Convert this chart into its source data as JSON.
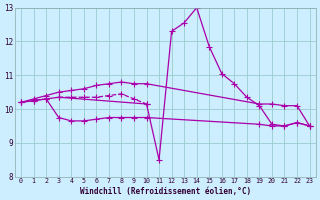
{
  "xlabel": "Windchill (Refroidissement éolien,°C)",
  "xlim": [
    -0.5,
    23.5
  ],
  "ylim": [
    8,
    13
  ],
  "yticks": [
    8,
    9,
    10,
    11,
    12,
    13
  ],
  "xticks": [
    0,
    1,
    2,
    3,
    4,
    5,
    6,
    7,
    8,
    9,
    10,
    11,
    12,
    13,
    14,
    15,
    16,
    17,
    18,
    19,
    20,
    21,
    22,
    23
  ],
  "background_color": "#cceeff",
  "grid_color": "#99cccc",
  "line_color": "#aa00aa",
  "lines": [
    {
      "x": [
        0,
        1,
        2,
        3,
        4,
        5,
        6,
        7,
        8,
        9,
        10,
        19,
        20,
        21,
        22,
        23
      ],
      "y": [
        10.2,
        10.3,
        10.4,
        10.5,
        10.55,
        10.6,
        10.7,
        10.75,
        10.8,
        10.75,
        10.75,
        10.15,
        10.15,
        10.1,
        10.1,
        9.5
      ],
      "ls": "-"
    },
    {
      "x": [
        0,
        1,
        2,
        3,
        4,
        5,
        6,
        7,
        8,
        9,
        10,
        19,
        20,
        21,
        22,
        23
      ],
      "y": [
        10.2,
        10.25,
        10.3,
        9.75,
        9.65,
        9.65,
        9.7,
        9.75,
        9.75,
        9.75,
        9.75,
        9.55,
        9.5,
        9.5,
        9.6,
        9.5
      ],
      "ls": "-"
    },
    {
      "x": [
        0,
        1,
        2,
        3,
        10,
        11,
        12,
        13,
        14,
        15,
        16,
        17,
        18,
        19,
        20,
        21,
        22,
        23
      ],
      "y": [
        10.2,
        10.25,
        10.3,
        10.35,
        10.15,
        8.5,
        12.3,
        12.55,
        13.0,
        11.85,
        11.05,
        10.75,
        10.35,
        10.1,
        9.55,
        9.5,
        9.6,
        9.5
      ],
      "ls": "-"
    },
    {
      "x": [
        3,
        4,
        5,
        6,
        7,
        8,
        9,
        10
      ],
      "y": [
        10.35,
        10.35,
        10.35,
        10.35,
        10.4,
        10.45,
        10.3,
        10.15
      ],
      "ls": "--"
    }
  ],
  "marker": "+",
  "markersize": 4,
  "linewidth": 0.9
}
